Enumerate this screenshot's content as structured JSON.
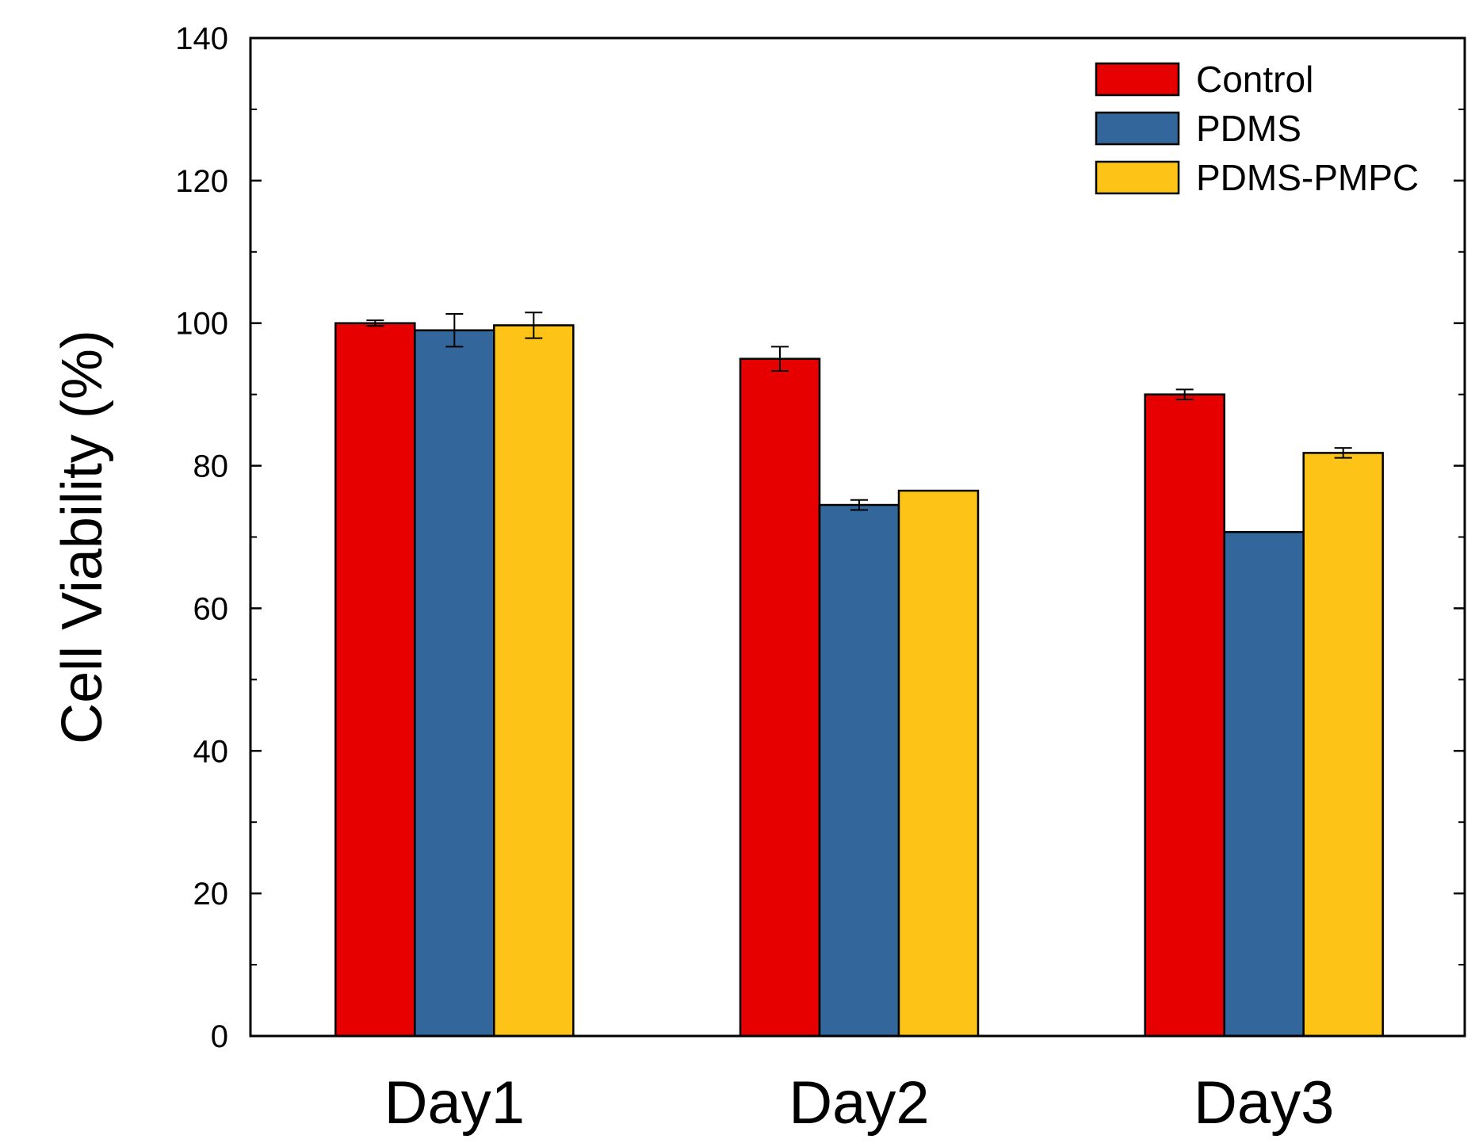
{
  "chart_data": {
    "type": "bar",
    "title": "",
    "xlabel": "",
    "ylabel": "Cell Viability (%)",
    "ylim": [
      0,
      140
    ],
    "y_ticks": [
      0,
      20,
      40,
      60,
      80,
      100,
      120,
      140
    ],
    "y_tick_labels": [
      "0",
      "20",
      "40",
      "60",
      "80",
      "100",
      "120",
      "140"
    ],
    "categories": [
      "Day1",
      "Day2",
      "Day3"
    ],
    "legend_position": "top-right",
    "grid": false,
    "series": [
      {
        "name": "Control",
        "color": "#E60000",
        "values": [
          100,
          95,
          90
        ],
        "errors": [
          0.4,
          1.7,
          0.7
        ]
      },
      {
        "name": "PDMS",
        "color": "#33669A",
        "values": [
          99,
          74.5,
          70.7
        ],
        "errors": [
          2.3,
          0.7,
          0
        ]
      },
      {
        "name": "PDMS-PMPC",
        "color": "#FDC417",
        "values": [
          99.7,
          76.5,
          81.8
        ],
        "errors": [
          1.8,
          0,
          0.7
        ]
      }
    ]
  }
}
